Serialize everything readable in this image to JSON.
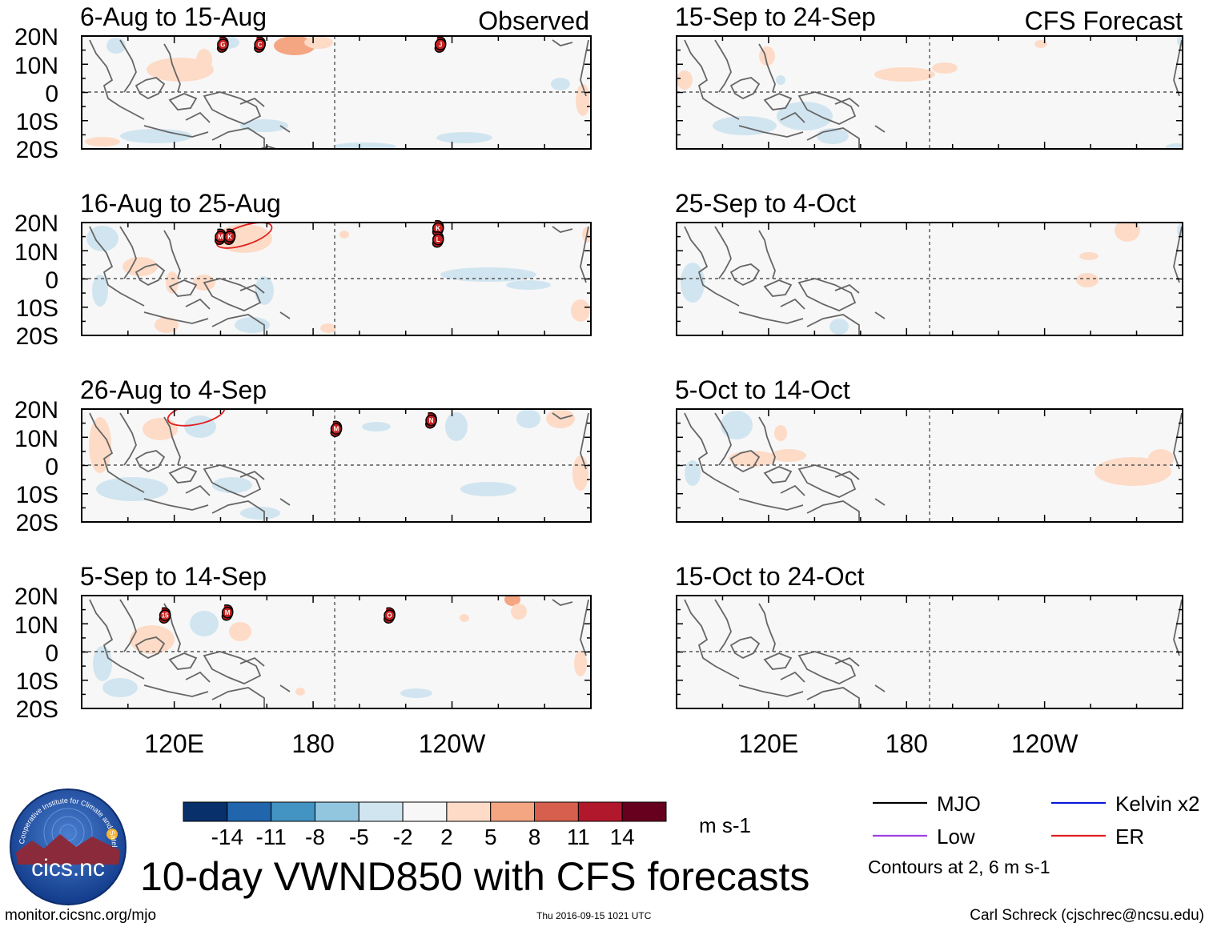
{
  "chart_data": {
    "type": "heatmap",
    "title": "10-day VWND850 with CFS forecasts",
    "variable": "VWND850",
    "units": "m s-1",
    "lat_range": [
      -20,
      20
    ],
    "lon_range_deg_east": [
      80,
      300
    ],
    "lat_ticks": [
      "20N",
      "10N",
      "0",
      "10S",
      "20S"
    ],
    "lon_ticks": [
      "120E",
      "180",
      "120W"
    ],
    "colorbar": {
      "levels": [
        "-14",
        "-11",
        "-8",
        "-5",
        "-2",
        "2",
        "5",
        "8",
        "11",
        "14"
      ],
      "colors": [
        "#08306b",
        "#2166ac",
        "#4393c3",
        "#92c5de",
        "#d1e5f0",
        "#f7f7f7",
        "#fddbc7",
        "#f4a582",
        "#d6604d",
        "#b2182b",
        "#67001f"
      ]
    },
    "column_labels": {
      "observed": "Observed",
      "forecast": "CFS Forecast"
    },
    "panels": [
      {
        "column": "observed",
        "period": "6-Aug to 15-Aug",
        "storms": [
          {
            "lon": 141,
            "lat": 17,
            "label": "G"
          },
          {
            "lon": 157,
            "lat": 17,
            "label": "C"
          },
          {
            "lon": 235,
            "lat": 17,
            "label": "J"
          }
        ]
      },
      {
        "column": "observed",
        "period": "16-Aug to 25-Aug",
        "storms": [
          {
            "lon": 140,
            "lat": 15,
            "label": "M"
          },
          {
            "lon": 144,
            "lat": 15,
            "label": "K"
          },
          {
            "lon": 234,
            "lat": 18,
            "label": "K"
          },
          {
            "lon": 234,
            "lat": 14,
            "label": "L"
          }
        ]
      },
      {
        "column": "observed",
        "period": "26-Aug to 4-Sep",
        "storms": [
          {
            "lon": 190,
            "lat": 13,
            "label": "M"
          },
          {
            "lon": 231,
            "lat": 16,
            "label": "N"
          }
        ]
      },
      {
        "column": "observed",
        "period": "5-Sep to 14-Sep",
        "storms": [
          {
            "lon": 116,
            "lat": 13,
            "label": "15"
          },
          {
            "lon": 143,
            "lat": 14,
            "label": "M"
          },
          {
            "lon": 213,
            "lat": 13,
            "label": "O"
          }
        ]
      },
      {
        "column": "forecast",
        "period": "15-Sep to 24-Sep",
        "storms": []
      },
      {
        "column": "forecast",
        "period": "25-Sep to 4-Oct",
        "storms": []
      },
      {
        "column": "forecast",
        "period": "5-Oct to 14-Oct",
        "storms": []
      },
      {
        "column": "forecast",
        "period": "15-Oct to 24-Oct",
        "storms": []
      }
    ],
    "legend": [
      {
        "label": "MJO",
        "color": "#000000"
      },
      {
        "label": "Kelvin x2",
        "color": "#0a1ad6"
      },
      {
        "label": "Low",
        "color": "#a040e0"
      },
      {
        "label": "ER",
        "color": "#e02020"
      }
    ],
    "contour_note": "Contours at 2, 6 m s-1"
  },
  "footer": {
    "url": "monitor.cicsnc.org/mjo",
    "timestamp": "Thu 2016-09-15 1021 UTC",
    "author": "Carl Schreck (cjschrec@ncsu.edu)"
  },
  "logo": {
    "name": "cics.nc",
    "ring_text": "Cooperative Institute for Climate and Satellites"
  }
}
